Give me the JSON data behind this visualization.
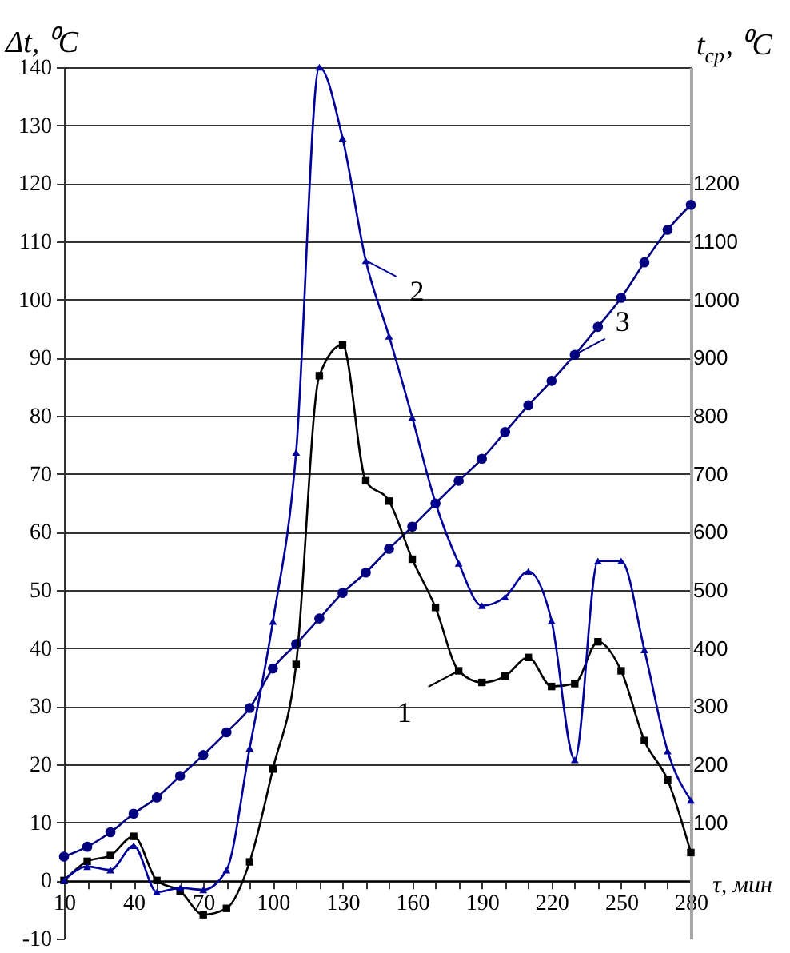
{
  "chart_data": {
    "type": "line",
    "xlabel": "τ, мин",
    "ylabel": "Δt, ⁰C",
    "y2label": "t$_{ср}$, ⁰C",
    "x": [
      10,
      20,
      30,
      40,
      50,
      60,
      70,
      80,
      90,
      100,
      110,
      120,
      130,
      140,
      150,
      160,
      170,
      180,
      190,
      200,
      210,
      220,
      230,
      240,
      250,
      260,
      270,
      280
    ],
    "series": [
      {
        "name": "1",
        "color": "#000000",
        "marker": "square",
        "values": [
          0,
          3.3,
          4.3,
          7.6,
          0,
          -1.8,
          -5.9,
          -4.8,
          3.2,
          19.2,
          37.2,
          86.9,
          92.2,
          68.8,
          65.3,
          55.3,
          47,
          36.1,
          34.1,
          35.2,
          38.4,
          33.4,
          33.9,
          41.1,
          36.1,
          24.1,
          17.3,
          4.8
        ]
      },
      {
        "name": "2",
        "color": "#00009c",
        "marker": "triangle",
        "values": [
          0,
          2.4,
          1.8,
          6,
          -2,
          -1.3,
          -1.6,
          1.8,
          22.8,
          44.6,
          73.7,
          140,
          127.8,
          106.7,
          93.7,
          79.7,
          65,
          54.6,
          47.3,
          48.8,
          53.2,
          44.7,
          20.8,
          55,
          55,
          39.7,
          22.3,
          13.8
        ]
      },
      {
        "name": "3",
        "color": "#000080",
        "marker": "circle",
        "axis": "y2",
        "values": [
          41,
          58,
          83,
          115,
          143,
          180,
          216,
          255,
          297,
          365,
          407,
          451,
          495,
          530,
          571,
          609,
          649,
          688,
          726,
          772,
          818,
          860,
          905,
          953,
          1003,
          1064,
          1120,
          1163
        ]
      }
    ],
    "xlim": [
      10,
      280
    ],
    "xticks": [
      10,
      {
        "value": 20,
        "label": null
      },
      {
        "value": 30,
        "label": null
      },
      40,
      {
        "value": 50,
        "label": null
      },
      {
        "value": 60,
        "label": null
      },
      70,
      {
        "value": 80,
        "label": null
      },
      {
        "value": 90,
        "label": null
      },
      100,
      {
        "value": 110,
        "label": null
      },
      {
        "value": 120,
        "label": null
      },
      130,
      {
        "value": 140,
        "label": null
      },
      {
        "value": 150,
        "label": null
      },
      160,
      {
        "value": 170,
        "label": null
      },
      {
        "value": 180,
        "label": null
      },
      190,
      {
        "value": 200,
        "label": null
      },
      {
        "value": 210,
        "label": null
      },
      220,
      {
        "value": 230,
        "label": null
      },
      {
        "value": 240,
        "label": null
      },
      250,
      {
        "value": 260,
        "label": null
      },
      {
        "value": 270,
        "label": null
      },
      280
    ],
    "ylim": [
      -10,
      140
    ],
    "yticks": [
      -10,
      0,
      10,
      20,
      30,
      40,
      50,
      60,
      70,
      80,
      90,
      100,
      110,
      120,
      130,
      140
    ],
    "y2lim": [
      -100,
      1400
    ],
    "y2ticks": [
      100,
      200,
      300,
      400,
      500,
      600,
      700,
      800,
      900,
      1000,
      1100,
      1200
    ],
    "grid": "y"
  }
}
